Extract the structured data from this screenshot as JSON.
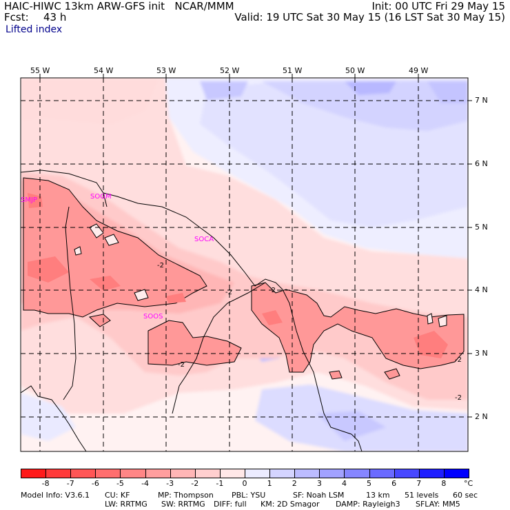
{
  "header": {
    "model_line": "HAIC-HIWC 13km ARW-GFS init   NCAR/MMM",
    "fcst_label": "Fcst:",
    "fcst_value": "43 h",
    "init": "Init: 00 UTC Fri 29 May 15",
    "valid": "Valid: 19 UTC Sat 30 May 15 (16 LST Sat 30 May 15)",
    "field": "Lifted index"
  },
  "map": {
    "lon_labels": [
      "55 W",
      "54 W",
      "53 W",
      "52 W",
      "51 W",
      "50 W",
      "49 W"
    ],
    "lat_labels": [
      "7 N",
      "6 N",
      "5 N",
      "4 N",
      "3 N",
      "2 N"
    ],
    "stations": [
      "SMJP",
      "SOGM",
      "SOCA",
      "SOOS"
    ],
    "contour_labels": [
      "-2",
      "-2",
      "-2",
      "-2",
      "-2",
      "-2"
    ]
  },
  "colorbar": {
    "ticks": [
      "-8",
      "-7",
      "-6",
      "-5",
      "-4",
      "-3",
      "-2",
      "-1",
      "0",
      "1",
      "2",
      "3",
      "4",
      "5",
      "6",
      "7",
      "8"
    ],
    "unit": "°C",
    "colors": [
      "#ff1a1a",
      "#ff3a3a",
      "#ff5656",
      "#ff6e6e",
      "#ff8686",
      "#ff9e9e",
      "#ffb6b6",
      "#ffcfcf",
      "#ffe8e8",
      "#ececff",
      "#d4d4ff",
      "#bcbcff",
      "#a2a2ff",
      "#8686ff",
      "#6a6aff",
      "#4848ff",
      "#1e1eff",
      "#0000ff"
    ]
  },
  "footer": {
    "line1": [
      "Model Info: V3.6.1",
      "CU: KF",
      "MP: Thompson",
      "PBL: YSU",
      "SF: Noah LSM",
      "13 km",
      "51 levels",
      "60 sec"
    ],
    "line2": [
      "LW: RRTMG",
      "SW: RRTMG",
      "DIFF: full",
      "KM: 2D Smagor",
      "DAMP: Rayleigh3",
      "SFLAY: MM5"
    ]
  }
}
